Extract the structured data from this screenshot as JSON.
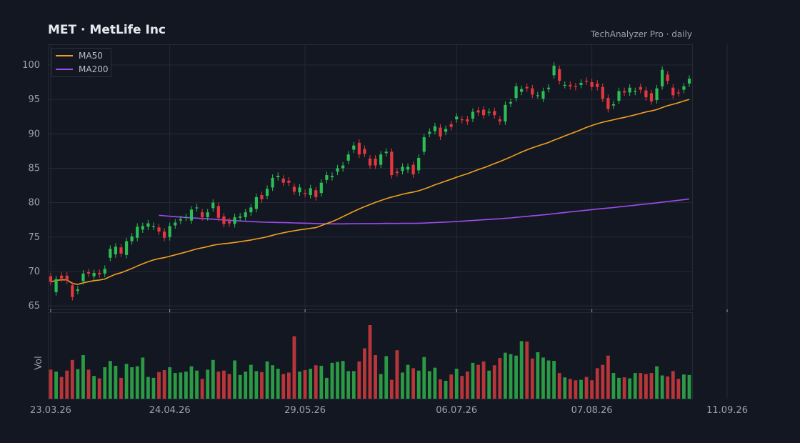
{
  "header": {
    "title": "MET  ·  MetLife Inc",
    "subtitle": "TechAnalyzer Pro · daily"
  },
  "colors": {
    "background": "#131722",
    "up": "#2dbd55",
    "down": "#e5383e",
    "ma50": "#f0a020",
    "ma200": "#a04bf0",
    "grid": "#252a36"
  },
  "chart_data": {
    "type": "candlestick",
    "price_axis": {
      "ylim": [
        64.5,
        103
      ],
      "ticks": [
        65,
        70,
        75,
        80,
        85,
        90,
        95,
        100
      ]
    },
    "x_tick_labels": [
      "23.03.26",
      "24.04.26",
      "29.05.26",
      "06.07.26",
      "07.08.26",
      "11.09.26"
    ],
    "x_tick_index": [
      0,
      22,
      47,
      75,
      100,
      125
    ],
    "volume_label": "Vol",
    "legend": [
      {
        "name": "MA50",
        "color": "#f0a020"
      },
      {
        "name": "MA200",
        "color": "#a04bf0"
      }
    ],
    "candles": [
      [
        69.3,
        68.5
      ],
      [
        67.0,
        68.9
      ],
      [
        69.4,
        69.0
      ],
      [
        69.4,
        68.7
      ],
      [
        68.0,
        66.3
      ],
      [
        67.2,
        67.4
      ],
      [
        68.6,
        69.7
      ],
      [
        69.9,
        69.7
      ],
      [
        69.3,
        69.8
      ],
      [
        69.8,
        69.6
      ],
      [
        69.7,
        70.4
      ],
      [
        72.0,
        73.3
      ],
      [
        72.5,
        73.6
      ],
      [
        73.5,
        72.6
      ],
      [
        72.4,
        74.4
      ],
      [
        74.4,
        75.1
      ],
      [
        74.9,
        76.5
      ],
      [
        76.1,
        76.6
      ],
      [
        76.5,
        77.0
      ],
      [
        76.5,
        76.6
      ],
      [
        76.4,
        75.8
      ],
      [
        75.8,
        74.9
      ],
      [
        75.0,
        76.6
      ],
      [
        76.7,
        77.1
      ],
      [
        77.4,
        77.6
      ],
      [
        77.8,
        77.9
      ],
      [
        77.4,
        79.0
      ],
      [
        79.2,
        79.3
      ],
      [
        78.6,
        77.9
      ],
      [
        77.9,
        78.6
      ],
      [
        79.2,
        80.0
      ],
      [
        79.5,
        77.8
      ],
      [
        78.0,
        76.9
      ],
      [
        77.3,
        77.0
      ],
      [
        76.9,
        77.9
      ],
      [
        77.8,
        78.0
      ],
      [
        77.9,
        78.6
      ],
      [
        78.6,
        79.3
      ],
      [
        79.1,
        80.8
      ],
      [
        81.1,
        80.5
      ],
      [
        81.0,
        82.0
      ],
      [
        82.2,
        83.6
      ],
      [
        83.7,
        83.9
      ],
      [
        83.5,
        82.9
      ],
      [
        83.2,
        82.9
      ],
      [
        82.3,
        81.6
      ],
      [
        81.5,
        82.2
      ],
      [
        81.4,
        81.3
      ],
      [
        81.1,
        82.1
      ],
      [
        81.8,
        80.8
      ],
      [
        81.4,
        82.9
      ],
      [
        83.3,
        84.0
      ],
      [
        83.7,
        83.9
      ],
      [
        84.5,
        85.0
      ],
      [
        85.0,
        85.4
      ],
      [
        86.1,
        87.0
      ],
      [
        87.7,
        88.3
      ],
      [
        88.7,
        87.0
      ],
      [
        87.8,
        87.1
      ],
      [
        86.4,
        85.4
      ],
      [
        86.4,
        85.4
      ],
      [
        85.5,
        87.0
      ],
      [
        87.2,
        87.4
      ],
      [
        87.4,
        84.0
      ],
      [
        84.5,
        84.3
      ],
      [
        84.6,
        85.2
      ],
      [
        84.8,
        85.2
      ],
      [
        85.5,
        84.1
      ],
      [
        84.7,
        86.5
      ],
      [
        87.4,
        89.5
      ],
      [
        90.0,
        90.3
      ],
      [
        90.4,
        91.1
      ],
      [
        90.9,
        89.6
      ],
      [
        90.3,
        90.7
      ],
      [
        91.4,
        91.0
      ],
      [
        92.1,
        92.5
      ],
      [
        92.1,
        92.0
      ],
      [
        92.1,
        91.8
      ],
      [
        92.2,
        93.2
      ],
      [
        93.4,
        93.1
      ],
      [
        93.5,
        92.7
      ],
      [
        93.1,
        93.2
      ],
      [
        93.3,
        92.7
      ],
      [
        92.1,
        91.8
      ],
      [
        91.8,
        94.2
      ],
      [
        94.4,
        94.6
      ],
      [
        95.2,
        96.9
      ],
      [
        96.1,
        96.5
      ],
      [
        96.8,
        96.6
      ],
      [
        96.6,
        95.7
      ],
      [
        95.6,
        95.6
      ],
      [
        95.1,
        96.2
      ],
      [
        96.5,
        96.7
      ],
      [
        98.5,
        99.9
      ],
      [
        99.4,
        97.7
      ],
      [
        97.1,
        97.1
      ],
      [
        97.1,
        96.9
      ],
      [
        96.9,
        96.8
      ],
      [
        97.1,
        97.4
      ],
      [
        97.7,
        97.6
      ],
      [
        97.5,
        96.8
      ],
      [
        97.3,
        96.8
      ],
      [
        96.8,
        95.1
      ],
      [
        95.2,
        93.6
      ],
      [
        94.1,
        94.3
      ],
      [
        94.8,
        96.2
      ],
      [
        96.2,
        96.0
      ],
      [
        96.0,
        96.7
      ],
      [
        96.1,
        96.2
      ],
      [
        96.8,
        96.4
      ],
      [
        96.3,
        95.3
      ],
      [
        95.9,
        94.7
      ],
      [
        94.9,
        96.6
      ],
      [
        96.9,
        99.3
      ],
      [
        98.6,
        97.7
      ],
      [
        96.7,
        95.6
      ],
      [
        96.0,
        95.9
      ],
      [
        96.4,
        96.9
      ],
      [
        97.3,
        98.0
      ]
    ],
    "volumes": [
      60,
      56,
      45,
      58,
      80,
      61,
      90,
      60,
      47,
      42,
      65,
      78,
      68,
      43,
      72,
      65,
      67,
      85,
      45,
      43,
      55,
      59,
      65,
      53,
      54,
      56,
      67,
      58,
      41,
      60,
      80,
      56,
      58,
      51,
      79,
      49,
      56,
      70,
      57,
      55,
      77,
      69,
      62,
      51,
      54,
      129,
      56,
      59,
      62,
      69,
      68,
      43,
      74,
      76,
      78,
      57,
      57,
      77,
      104,
      152,
      90,
      51,
      88,
      39,
      100,
      54,
      70,
      63,
      58,
      86,
      57,
      64,
      40,
      37,
      50,
      62,
      47,
      56,
      74,
      70,
      77,
      58,
      69,
      84,
      95,
      92,
      89,
      119,
      118,
      83,
      96,
      85,
      79,
      78,
      53,
      44,
      41,
      38,
      39,
      45,
      38,
      63,
      70,
      89,
      53,
      43,
      44,
      42,
      53,
      53,
      51,
      53,
      67,
      48,
      46,
      57,
      41,
      50,
      49
    ]
  }
}
